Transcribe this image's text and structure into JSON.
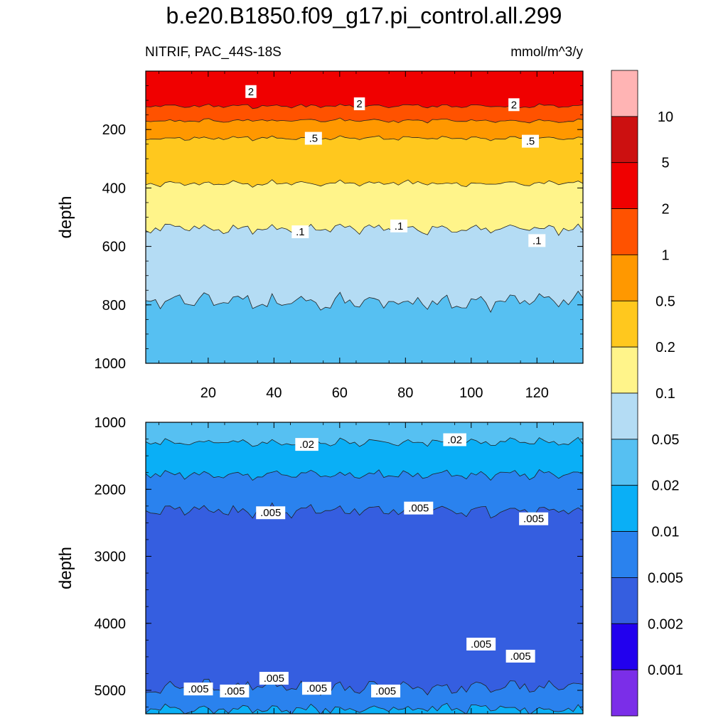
{
  "chart_data": {
    "type": "filled-contour",
    "title": "b.e20.B1850.f09_g17.pi_control.all.299",
    "variable": "NITRIF, PAC_44S-18S",
    "units": "mmol/m^3/y",
    "x_ticks": [
      20,
      40,
      60,
      80,
      100,
      120
    ],
    "xlim": [
      1,
      134
    ],
    "panels": [
      {
        "name": "upper",
        "ylabel": "depth",
        "ylim": [
          0,
          1000
        ],
        "y_ticks": [
          200,
          400,
          600,
          800,
          1000
        ],
        "contour_depths": [
          {
            "level": 2,
            "mean_depth": 120
          },
          {
            "level": 1,
            "mean_depth": 170
          },
          {
            "level": 0.5,
            "mean_depth": 230
          },
          {
            "level": 0.2,
            "mean_depth": 385
          },
          {
            "level": 0.1,
            "mean_depth": 540
          },
          {
            "level": 0.05,
            "mean_depth": 790
          }
        ],
        "contour_labels": [
          {
            "text": "2",
            "x": 33,
            "depth": 70
          },
          {
            "text": "2",
            "x": 66,
            "depth": 112
          },
          {
            "text": "2",
            "x": 113,
            "depth": 115
          },
          {
            "text": ".5",
            "x": 52,
            "depth": 230
          },
          {
            "text": ".5",
            "x": 118,
            "depth": 240
          },
          {
            "text": ".1",
            "x": 48,
            "depth": 550
          },
          {
            "text": ".1",
            "x": 78,
            "depth": 530
          },
          {
            "text": ".1",
            "x": 120,
            "depth": 580
          }
        ]
      },
      {
        "name": "lower",
        "ylabel": "depth",
        "ylim": [
          1000,
          5350
        ],
        "y_ticks": [
          1000,
          2000,
          3000,
          4000,
          5000
        ],
        "contour_depths": [
          {
            "level": 0.02,
            "mean_depth": 1300
          },
          {
            "level": 0.01,
            "mean_depth": 1780
          },
          {
            "level": 0.005,
            "mean_depth": 2320
          },
          {
            "level": 0.005,
            "mean_depth": 4950
          },
          {
            "level": 0.01,
            "mean_depth": 5280
          }
        ],
        "contour_labels": [
          {
            "text": ".02",
            "x": 50,
            "depth": 1330
          },
          {
            "text": ".02",
            "x": 95,
            "depth": 1260
          },
          {
            "text": ".005",
            "x": 39,
            "depth": 2350
          },
          {
            "text": ".005",
            "x": 84,
            "depth": 2280
          },
          {
            "text": ".005",
            "x": 119,
            "depth": 2440
          },
          {
            "text": ".005",
            "x": 17,
            "depth": 4980
          },
          {
            "text": ".005",
            "x": 28,
            "depth": 5010
          },
          {
            "text": ".005",
            "x": 40,
            "depth": 4820
          },
          {
            "text": ".005",
            "x": 53,
            "depth": 4970
          },
          {
            "text": ".005",
            "x": 74,
            "depth": 5010
          },
          {
            "text": ".005",
            "x": 103,
            "depth": 4310
          },
          {
            "text": ".005",
            "x": 115,
            "depth": 4490
          }
        ]
      }
    ],
    "colorbar": {
      "levels": [
        "0.001",
        "0.002",
        "0.005",
        "0.01",
        "0.02",
        "0.05",
        "0.1",
        "0.2",
        "0.5",
        "1",
        "2",
        "5",
        "10"
      ],
      "colors": [
        "#7b2ee8",
        "#2200ee",
        "#0a0aff",
        "#355ee0",
        "#2a82ee",
        "#0aaff6",
        "#56c0f2",
        "#b4dcf4",
        "#fff48a",
        "#ffc81e",
        "#ff9800",
        "#ff5200",
        "#f00000",
        "#cc1010",
        "#ffb4b4"
      ]
    }
  }
}
